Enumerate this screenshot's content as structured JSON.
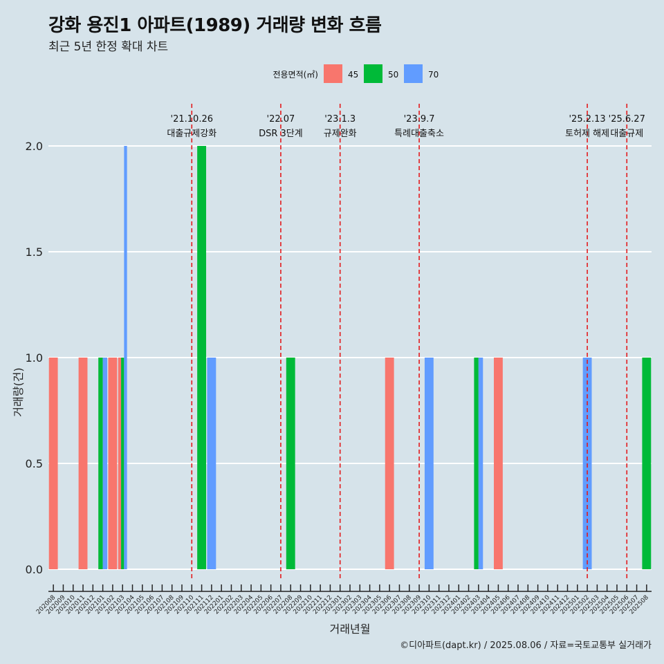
{
  "header": {
    "title": "강화 용진1 아파트(1989) 거래량 변화 흐름",
    "subtitle": "최근 5년 한정 확대 차트"
  },
  "caption": "©디아파트(dapt.kr) / 2025.08.06 / 자료=국토교통부 실거래가",
  "chart_data": {
    "type": "bar",
    "title": "강화 용진1 아파트(1989) 거래량 변화 흐름",
    "subtitle": "최근 5년 한정 확대 차트",
    "xlabel": "거래년월",
    "ylabel": "거래량(건)",
    "ylim": [
      0,
      2
    ],
    "yticks": [
      "0.0",
      "0.5",
      "1.0",
      "1.5",
      "2.0"
    ],
    "ytick_values": [
      0,
      0.5,
      1.0,
      1.5,
      2.0
    ],
    "grid": true,
    "legend": {
      "title": "전용면적(㎡)",
      "position": "top",
      "entries": [
        {
          "name": "45",
          "color": "#F8766D"
        },
        {
          "name": "50",
          "color": "#00BA38"
        },
        {
          "name": "70",
          "color": "#619CFF"
        }
      ]
    },
    "categories": [
      "202008",
      "202009",
      "202010",
      "202011",
      "202012",
      "202101",
      "202102",
      "202103",
      "202104",
      "202105",
      "202106",
      "202107",
      "202108",
      "202109",
      "202110",
      "202111",
      "202112",
      "202201",
      "202202",
      "202203",
      "202204",
      "202205",
      "202206",
      "202207",
      "202208",
      "202209",
      "202210",
      "202211",
      "202212",
      "202301",
      "202302",
      "202303",
      "202304",
      "202305",
      "202306",
      "202307",
      "202308",
      "202309",
      "202310",
      "202311",
      "202312",
      "202401",
      "202402",
      "202403",
      "202404",
      "202405",
      "202406",
      "202407",
      "202408",
      "202409",
      "202410",
      "202411",
      "202412",
      "202501",
      "202502",
      "202503",
      "202504",
      "202505",
      "202506",
      "202507",
      "202508"
    ],
    "bars": [
      {
        "category": "202008",
        "series": "45",
        "value": 1,
        "slot": 0,
        "slots": 1
      },
      {
        "category": "202011",
        "series": "45",
        "value": 1,
        "slot": 0,
        "slots": 1
      },
      {
        "category": "202101",
        "series": "50",
        "value": 1,
        "slot": 0,
        "slots": 2
      },
      {
        "category": "202101",
        "series": "70",
        "value": 1,
        "slot": 1,
        "slots": 2
      },
      {
        "category": "202102",
        "series": "45",
        "value": 1,
        "slot": 0,
        "slots": 1
      },
      {
        "category": "202103",
        "series": "45",
        "value": 1,
        "slot": 0,
        "slots": 3
      },
      {
        "category": "202103",
        "series": "50",
        "value": 1,
        "slot": 1,
        "slots": 3
      },
      {
        "category": "202103",
        "series": "70",
        "value": 2,
        "slot": 2,
        "slots": 3
      },
      {
        "category": "202111",
        "series": "50",
        "value": 2,
        "slot": 0,
        "slots": 1
      },
      {
        "category": "202112",
        "series": "70",
        "value": 1,
        "slot": 0,
        "slots": 1
      },
      {
        "category": "202208",
        "series": "50",
        "value": 1,
        "slot": 0,
        "slots": 1
      },
      {
        "category": "202306",
        "series": "45",
        "value": 1,
        "slot": 0,
        "slots": 1
      },
      {
        "category": "202310",
        "series": "70",
        "value": 1,
        "slot": 0,
        "slots": 1
      },
      {
        "category": "202403",
        "series": "50",
        "value": 1,
        "slot": 0,
        "slots": 2
      },
      {
        "category": "202403",
        "series": "70",
        "value": 1,
        "slot": 1,
        "slots": 2
      },
      {
        "category": "202405",
        "series": "45",
        "value": 1,
        "slot": 0,
        "slots": 1
      },
      {
        "category": "202502",
        "series": "70",
        "value": 1,
        "slot": 0,
        "slots": 1
      },
      {
        "category": "202508",
        "series": "50",
        "value": 1,
        "slot": 0,
        "slots": 1
      }
    ],
    "events": [
      {
        "category": "202110",
        "date": "'21.10.26",
        "label": "대출규제강화"
      },
      {
        "category": "202207",
        "date": "'22.07",
        "label": "DSR 3단계"
      },
      {
        "category": "202301",
        "date": "'23.1.3",
        "label": "규제완화"
      },
      {
        "category": "202309",
        "date": "'23.9.7",
        "label": "특례대출축소"
      },
      {
        "category": "202502",
        "date": "'25.2.13",
        "label": "토허제 해제"
      },
      {
        "category": "202506",
        "date": "'25.6.27",
        "label": "대출규제"
      }
    ]
  }
}
